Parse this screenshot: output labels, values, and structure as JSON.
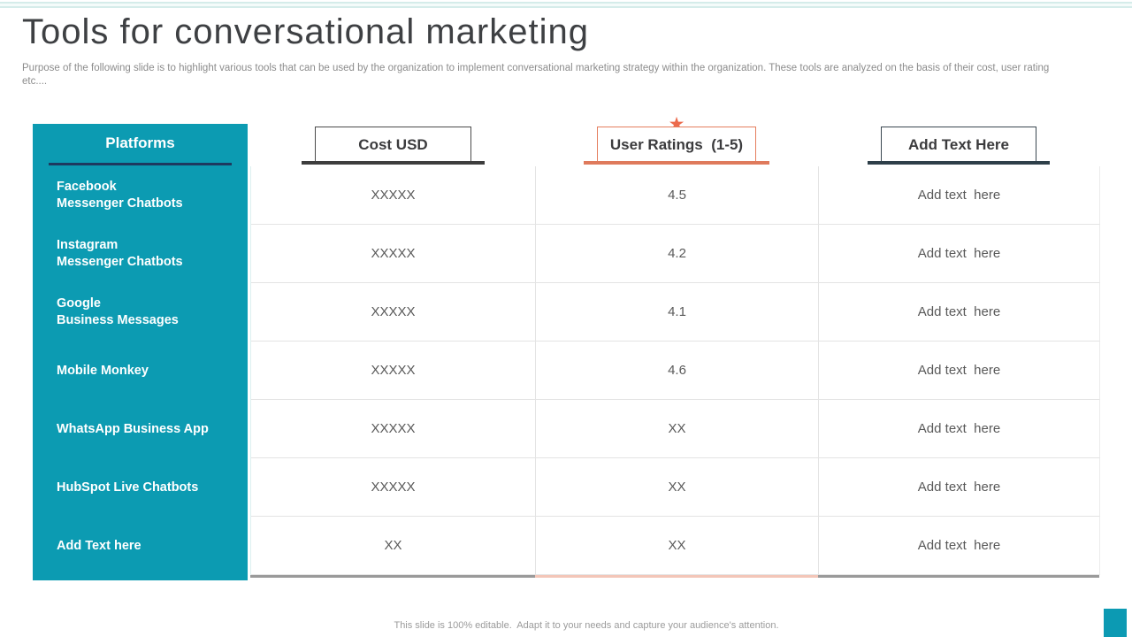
{
  "slide": {
    "title": "Tools for conversational marketing",
    "subtitle": "Purpose of the following slide is to highlight various tools that can be used by the organization to implement conversational marketing strategy within the organization. These tools are analyzed on the basis of their cost, user rating etc....",
    "footer": "This slide is 100% editable.  Adapt it to your needs and capture your audience's attention."
  },
  "colors": {
    "teal": "#0c9bb2",
    "platforms_underline_navy": "#1e3a5f",
    "coral_accent": "#e57e5e",
    "coral_light_accent": "#f3c6b8",
    "dark_slate_accent": "#2e3f49",
    "dark_gray_accent": "#3d3d3d",
    "grid_line_gray": "#e4e4e4",
    "bottom_bar_gray": "#9a9a9a"
  },
  "icons": {
    "star": "★"
  },
  "table": {
    "platform_header": "Platforms",
    "columns": {
      "cost": "Cost USD",
      "ratings": "User Ratings  (1-5)",
      "addtext": "Add Text Here"
    },
    "rows": [
      {
        "platform_line1": "Facebook",
        "platform_line2": "Messenger Chatbots",
        "cost": "XXXXX",
        "rating": "4.5",
        "note": "Add text  here"
      },
      {
        "platform_line1": "Instagram",
        "platform_line2": "Messenger Chatbots",
        "cost": "XXXXX",
        "rating": "4.2",
        "note": "Add text  here"
      },
      {
        "platform_line1": "Google",
        "platform_line2": "Business Messages",
        "cost": "XXXXX",
        "rating": "4.1",
        "note": "Add text  here"
      },
      {
        "platform_line1": "Mobile Monkey",
        "platform_line2": "",
        "cost": "XXXXX",
        "rating": "4.6",
        "note": "Add text  here"
      },
      {
        "platform_line1": "WhatsApp Business App",
        "platform_line2": "",
        "cost": "XXXXX",
        "rating": "XX",
        "note": "Add text  here"
      },
      {
        "platform_line1": "HubSpot Live Chatbots",
        "platform_line2": "",
        "cost": "XXXXX",
        "rating": "XX",
        "note": "Add text  here"
      },
      {
        "platform_line1": "Add Text here",
        "platform_line2": "",
        "cost": "XX",
        "rating": "XX",
        "note": "Add text  here"
      }
    ]
  }
}
